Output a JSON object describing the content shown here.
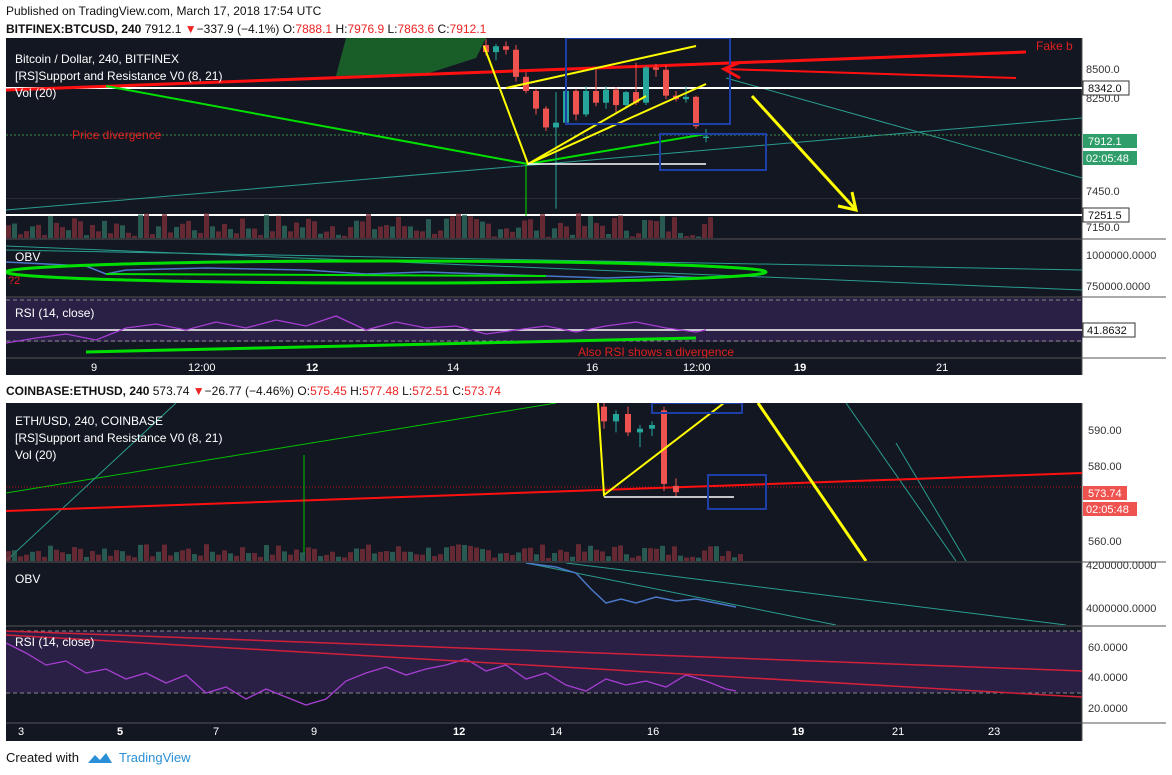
{
  "published": "Published on TradingView.com, March 17, 2018 17:54 UTC",
  "footer": {
    "created_with": "Created with",
    "brand": "TradingView"
  },
  "colors": {
    "bg": "#131722",
    "up": "#26a69a",
    "down": "#ef5350",
    "rsi_fill": "#2a1f45",
    "rsi_line": "#a63fd1",
    "obv_line": "#4a78c8",
    "green_annot": "#00e000",
    "yellow_annot": "#ffff00",
    "red_annot": "#ff1010",
    "blue_box": "#1e3fa8"
  },
  "btc": {
    "ticker": {
      "symbol": "BITFINEX:BTCUSD, 240",
      "close": "7912.1",
      "arrow": "▼",
      "change": "−337.9 (−4.1%)",
      "o_label": "O:",
      "o": "7888.1",
      "h_label": "H:",
      "h": "7976.9",
      "l_label": "L:",
      "l": "7863.6",
      "c_label": "C:",
      "c": "7912.1"
    },
    "legend": {
      "title": "Bitcoin / Dollar, 240, BITFINEX",
      "indicator": "[RS]Support and Resistance V0 (8, 21)",
      "vol": "Vol (20)"
    },
    "annotations": {
      "price_divergence": "Price divergence",
      "fake": "Fake b",
      "rsi_divergence": "Also RSI shows a divergence",
      "obv_marker": "?2"
    },
    "price_axis": [
      "8500.0",
      "8250.0",
      "7450.0",
      "7150.0"
    ],
    "price_badges": {
      "level_high": "8342.0",
      "last": "7912.1",
      "countdown": "02:05:48",
      "level_low": "7251.5"
    },
    "obv_label": "OBV",
    "obv_axis": [
      "1000000.0000",
      "750000.0000"
    ],
    "rsi_label": "RSI (14, close)",
    "rsi_value": "41.8632",
    "time_axis": [
      "9",
      "12:00",
      "12",
      "14",
      "16",
      "12:00",
      "19",
      "21"
    ]
  },
  "eth": {
    "ticker": {
      "symbol": "COINBASE:ETHUSD, 240",
      "close": "573.74",
      "arrow": "▼",
      "change": "−26.77 (−4.46%)",
      "o_label": "O:",
      "o": "575.45",
      "h_label": "H:",
      "h": "577.48",
      "l_label": "L:",
      "l": "572.51",
      "c_label": "C:",
      "c": "573.74"
    },
    "legend": {
      "title": "ETH/USD, 240, COINBASE",
      "indicator": "[RS]Support and Resistance V0 (8, 21)",
      "vol": "Vol (20)"
    },
    "price_axis": [
      "590.00",
      "580.00",
      "560.00"
    ],
    "price_badges": {
      "last": "573.74",
      "countdown": "02:05:48"
    },
    "obv_label": "OBV",
    "obv_axis": [
      "4200000.0000",
      "4000000.0000"
    ],
    "rsi_label": "RSI (14, close)",
    "rsi_axis": [
      "60.0000",
      "40.0000",
      "20.0000"
    ],
    "time_axis": [
      "3",
      "5",
      "7",
      "9",
      "12",
      "14",
      "16",
      "19",
      "21",
      "23"
    ]
  },
  "chart_data": [
    {
      "type": "candlestick",
      "title": "Bitcoin / Dollar, 240, BITFINEX",
      "ylim": [
        7050,
        8750
      ],
      "candles": [
        {
          "o": 8690,
          "h": 8740,
          "l": 8600,
          "c": 8630
        },
        {
          "o": 8630,
          "h": 8700,
          "l": 8560,
          "c": 8680
        },
        {
          "o": 8680,
          "h": 8720,
          "l": 8610,
          "c": 8650
        },
        {
          "o": 8650,
          "h": 8690,
          "l": 8380,
          "c": 8420
        },
        {
          "o": 8420,
          "h": 8460,
          "l": 8280,
          "c": 8300
        },
        {
          "o": 8300,
          "h": 8320,
          "l": 8100,
          "c": 8150
        },
        {
          "o": 8150,
          "h": 8170,
          "l": 7960,
          "c": 7990
        },
        {
          "o": 7990,
          "h": 8290,
          "l": 7300,
          "c": 8030
        },
        {
          "o": 8030,
          "h": 8340,
          "l": 8010,
          "c": 8300
        },
        {
          "o": 8300,
          "h": 8320,
          "l": 8050,
          "c": 8100
        },
        {
          "o": 8100,
          "h": 8340,
          "l": 8080,
          "c": 8300
        },
        {
          "o": 8300,
          "h": 8480,
          "l": 8170,
          "c": 8200
        },
        {
          "o": 8200,
          "h": 8340,
          "l": 8150,
          "c": 8310
        },
        {
          "o": 8310,
          "h": 8330,
          "l": 8120,
          "c": 8180
        },
        {
          "o": 8180,
          "h": 8300,
          "l": 8150,
          "c": 8290
        },
        {
          "o": 8290,
          "h": 8540,
          "l": 8180,
          "c": 8200
        },
        {
          "o": 8200,
          "h": 8510,
          "l": 8180,
          "c": 8500
        },
        {
          "o": 8500,
          "h": 8530,
          "l": 8420,
          "c": 8480
        },
        {
          "o": 8480,
          "h": 8520,
          "l": 8230,
          "c": 8260
        },
        {
          "o": 8260,
          "h": 8300,
          "l": 8210,
          "c": 8230
        },
        {
          "o": 8230,
          "h": 8340,
          "l": 8200,
          "c": 8250
        },
        {
          "o": 8250,
          "h": 8260,
          "l": 7980,
          "c": 8000
        },
        {
          "o": 7900,
          "h": 7977,
          "l": 7864,
          "c": 7912
        }
      ],
      "levels": [
        8342.0,
        7251.5
      ],
      "last": 7912.1
    },
    {
      "type": "candlestick",
      "title": "ETH/USD, 240, COINBASE",
      "ylim": [
        555,
        598
      ],
      "candles": [
        {
          "o": 597,
          "h": 598,
          "l": 591,
          "c": 593
        },
        {
          "o": 593,
          "h": 596,
          "l": 590,
          "c": 595
        },
        {
          "o": 595,
          "h": 597,
          "l": 589,
          "c": 590
        },
        {
          "o": 590,
          "h": 592,
          "l": 586,
          "c": 591
        },
        {
          "o": 591,
          "h": 593,
          "l": 589,
          "c": 592
        },
        {
          "o": 596,
          "h": 597,
          "l": 574,
          "c": 576
        },
        {
          "o": 575.45,
          "h": 577.48,
          "l": 572.51,
          "c": 573.74
        }
      ],
      "last": 573.74
    }
  ]
}
